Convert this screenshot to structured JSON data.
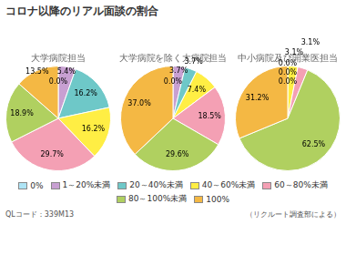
{
  "title": "コロナ以降のリアル面談の割合",
  "annotations": [
    "QLコード：339M13",
    "（リクルート調査部による）"
  ],
  "legend": "bottom",
  "chart_data": [
    {
      "type": "pie",
      "title": "大学病院担当",
      "categories": [
        "0%",
        "1～20%未満",
        "20～40%未満",
        "40～60%未満",
        "60～80%未満",
        "80～100%未満",
        "100%"
      ],
      "values": [
        0.0,
        5.4,
        16.2,
        16.2,
        29.7,
        18.9,
        13.5
      ],
      "value_labels": [
        "0.0%",
        "5.4%",
        "16.2%",
        "16.2%",
        "29.7%",
        "18.9%",
        "13.5%"
      ],
      "colors": [
        "#aee4f5",
        "#c8a0d2",
        "#6ec8c8",
        "#ffee44",
        "#f4a0b4",
        "#b0d060",
        "#f4b844"
      ],
      "data_labels": true
    },
    {
      "type": "pie",
      "title": "大学病院を除く大病院担当",
      "categories": [
        "0%",
        "1～20%未満",
        "20～40%未満",
        "40～60%未満",
        "60～80%未満",
        "80～100%未満",
        "100%"
      ],
      "values": [
        0.0,
        3.7,
        3.7,
        7.4,
        18.5,
        29.6,
        37.0
      ],
      "value_labels": [
        "0.0%",
        "3.7%",
        "3.7%",
        "7.4%",
        "18.5%",
        "29.6%",
        "37.0%"
      ],
      "colors": [
        "#aee4f5",
        "#c8a0d2",
        "#6ec8c8",
        "#ffee44",
        "#f4a0b4",
        "#b0d060",
        "#f4b844"
      ],
      "data_labels": true
    },
    {
      "type": "pie",
      "title": "中小病院及び開業医担当",
      "categories": [
        "0%",
        "1～20%未満",
        "20～40%未満",
        "40～60%未満",
        "60～80%未満",
        "80～100%未満",
        "100%"
      ],
      "values": [
        0.0,
        0.0,
        0.0,
        3.1,
        3.1,
        62.5,
        31.2
      ],
      "value_labels": [
        "0.0%",
        "0.0%",
        "0.0%",
        "3.1%",
        "3.1%",
        "62.5%",
        "31.2%"
      ],
      "colors": [
        "#aee4f5",
        "#c8a0d2",
        "#6ec8c8",
        "#ffee44",
        "#f4a0b4",
        "#b0d060",
        "#f4b844"
      ],
      "data_labels": true
    }
  ]
}
